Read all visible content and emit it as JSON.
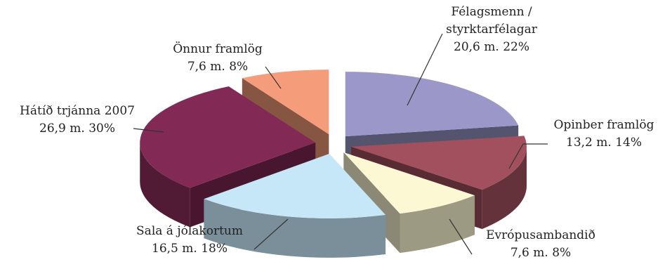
{
  "chart_data": {
    "type": "pie",
    "style": "3d-exploded",
    "unit": "m.",
    "slices": [
      {
        "label_lines": [
          "Félagsmenn /",
          "styrktarfélagar"
        ],
        "value_text": "20,6 m. 22%",
        "value": 20.6,
        "percent": 22,
        "color": "#9b98c9"
      },
      {
        "label_lines": [
          "Opinber framlög"
        ],
        "value_text": "13,2 m. 14%",
        "value": 13.2,
        "percent": 14,
        "color": "#a2505e"
      },
      {
        "label_lines": [
          "Evrópusambandið"
        ],
        "value_text": "7,6 m. 8%",
        "value": 7.6,
        "percent": 8,
        "color": "#fdf8d4"
      },
      {
        "label_lines": [
          "Sala á jólakortum"
        ],
        "value_text": "16,5 m. 18%",
        "value": 16.5,
        "percent": 18,
        "color": "#c5e7f8"
      },
      {
        "label_lines": [
          "Hátíð trjánna 2007"
        ],
        "value_text": "26,9 m. 30%",
        "value": 26.9,
        "percent": 30,
        "color": "#822a55"
      },
      {
        "label_lines": [
          "Önnur framlög"
        ],
        "value_text": "7,6 m. 8%",
        "value": 7.6,
        "percent": 8,
        "color": "#f59c7a"
      }
    ],
    "legend": "none",
    "grid": false
  }
}
